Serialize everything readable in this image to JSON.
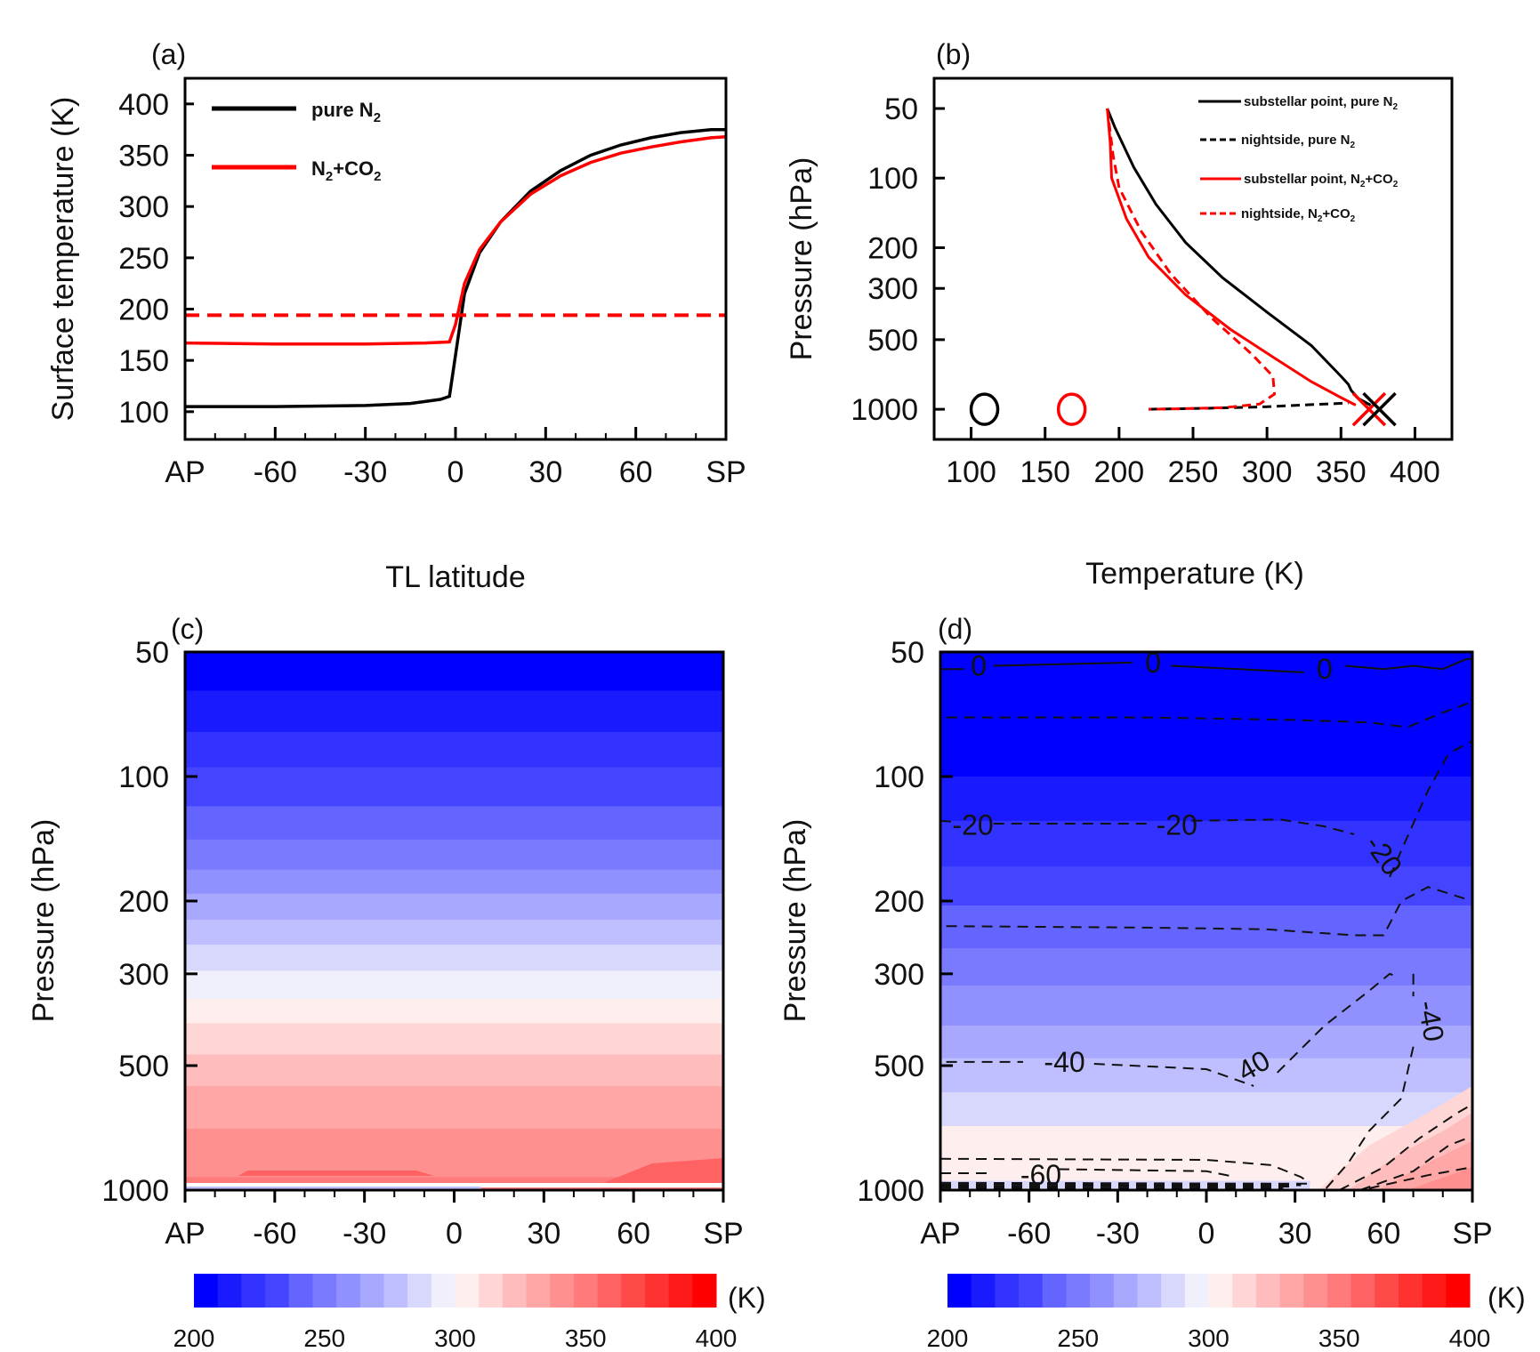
{
  "colors": {
    "black": "#000000",
    "red": "#ff0000"
  },
  "chart_data": [
    {
      "panel": "(a)",
      "type": "line",
      "xlabel": "TL latitude",
      "ylabel": "Surface temperature (K)",
      "xticks": [
        "AP",
        "-60",
        "-30",
        "0",
        "30",
        "60",
        "SP"
      ],
      "xtick_values": [
        -90,
        -60,
        -30,
        0,
        30,
        60,
        90
      ],
      "yticks": [
        "100",
        "150",
        "200",
        "250",
        "300",
        "350",
        "400"
      ],
      "ytick_values": [
        100,
        150,
        200,
        250,
        300,
        350,
        400
      ],
      "xlim": [
        -90,
        90
      ],
      "ylim": [
        73,
        425
      ],
      "legend": {
        "placement": "top-left",
        "entries": [
          {
            "label": "pure N",
            "sub": "2",
            "color": "#000000"
          },
          {
            "label": "N",
            "sub": "2",
            "label2": "+CO",
            "sub2": "2",
            "color": "#ff0000"
          }
        ]
      },
      "series": [
        {
          "name": "pure N2",
          "color": "#000000",
          "dash": false,
          "x": [
            -90,
            -60,
            -30,
            -15,
            -5,
            -2,
            0,
            3,
            8,
            15,
            25,
            35,
            45,
            55,
            65,
            75,
            85,
            90
          ],
          "y": [
            105,
            105,
            106,
            108,
            112,
            115,
            155,
            215,
            255,
            285,
            315,
            335,
            350,
            360,
            367,
            372,
            375,
            375
          ]
        },
        {
          "name": "N2+CO2",
          "color": "#ff0000",
          "dash": false,
          "x": [
            -90,
            -60,
            -30,
            -10,
            -2,
            0,
            3,
            8,
            15,
            25,
            35,
            45,
            55,
            65,
            75,
            85,
            90
          ],
          "y": [
            167,
            166,
            166,
            167,
            168,
            185,
            225,
            258,
            285,
            312,
            330,
            343,
            352,
            358,
            363,
            367,
            368
          ]
        },
        {
          "name": "N2+CO2 (dashed)",
          "color": "#ff0000",
          "dash": true,
          "x": [
            -90,
            90
          ],
          "y": [
            194,
            194
          ]
        }
      ]
    },
    {
      "panel": "(b)",
      "type": "line",
      "xlabel": "Temperature (K)",
      "ylabel": "Pressure (hPa)",
      "xticks": [
        "100",
        "150",
        "200",
        "250",
        "300",
        "350",
        "400"
      ],
      "xtick_values": [
        100,
        150,
        200,
        250,
        300,
        350,
        400
      ],
      "yticks": [
        "50",
        "100",
        "200",
        "300",
        "500",
        "1000"
      ],
      "ytick_values": [
        50,
        100,
        200,
        300,
        500,
        1000
      ],
      "xlim": [
        75,
        425
      ],
      "ylim_log": [
        1350,
        37
      ],
      "legend": {
        "placement": "top-right",
        "entries": [
          {
            "label": "substellar point, pure N",
            "sub": "2",
            "color": "#000000",
            "dash": false
          },
          {
            "label": "nightside,  pure N",
            "sub": "2",
            "color": "#000000",
            "dash": true
          },
          {
            "label": "substellar point, N",
            "sub": "2",
            "label2": "+CO",
            "sub2": "2",
            "color": "#ff0000",
            "dash": false
          },
          {
            "label": "nightside, N",
            "sub": "2",
            "label2": "+CO",
            "sub2": "2",
            "color": "#ff0000",
            "dash": true
          }
        ]
      },
      "series": [
        {
          "name": "substellar point, pure N2",
          "color": "#000000",
          "dash": false,
          "T": [
            192,
            197,
            210,
            225,
            245,
            270,
            300,
            330,
            350,
            355,
            357,
            362,
            370
          ],
          "p": [
            50,
            60,
            90,
            130,
            190,
            270,
            380,
            530,
            720,
            780,
            830,
            900,
            960
          ]
        },
        {
          "name": "nightside, pure N2",
          "color": "#000000",
          "dash": true,
          "T": [
            220,
            260,
            300,
            330,
            355
          ],
          "p": [
            1000,
            990,
            975,
            955,
            940
          ]
        },
        {
          "name": "substellar point, N2+CO2",
          "color": "#ff0000",
          "dash": false,
          "T": [
            192,
            194,
            195,
            205,
            220,
            245,
            275,
            305,
            330,
            350,
            360
          ],
          "p": [
            50,
            70,
            100,
            150,
            220,
            320,
            450,
            600,
            760,
            890,
            960
          ]
        },
        {
          "name": "nightside, N2+CO2",
          "color": "#ff0000",
          "dash": true,
          "T": [
            192,
            196,
            200,
            215,
            235,
            262,
            290,
            304,
            305,
            295,
            270,
            240,
            220
          ],
          "p": [
            50,
            80,
            110,
            170,
            260,
            400,
            580,
            720,
            860,
            950,
            985,
            995,
            1000
          ]
        }
      ],
      "markers": [
        {
          "shape": "circle",
          "T": 109,
          "p": 1000,
          "color": "#000000"
        },
        {
          "shape": "circle",
          "T": 168,
          "p": 1000,
          "color": "#ff0000"
        },
        {
          "shape": "x",
          "T": 369,
          "p": 1000,
          "color": "#ff0000"
        },
        {
          "shape": "x",
          "T": 376,
          "p": 1000,
          "color": "#000000"
        }
      ]
    },
    {
      "panel": "(c)",
      "type": "heatmap",
      "xlabel": "",
      "ylabel": "Pressure (hPa)",
      "xticks": [
        "AP",
        "-60",
        "-30",
        "0",
        "30",
        "60",
        "SP"
      ],
      "yticks": [
        "50",
        "100",
        "200",
        "300",
        "500",
        "1000"
      ],
      "ytick_values": [
        50,
        100,
        200,
        300,
        500,
        1000
      ],
      "color_levels_K": [
        200,
        209.1,
        218.2,
        227.3,
        236.4,
        245.5,
        254.5,
        263.6,
        272.7,
        281.8,
        290.9,
        300,
        309.1,
        318.2,
        327.3,
        336.4,
        345.5,
        354.5,
        363.6,
        372.7,
        381.8,
        390.9,
        400
      ],
      "band_level_index_top_to_bottom": [
        0,
        1,
        2,
        3,
        4,
        5,
        6,
        7,
        8,
        9,
        10,
        11,
        12,
        13,
        14,
        15,
        16
      ],
      "band_pressure_edges_hPa": [
        50,
        62,
        78,
        95,
        118,
        142,
        168,
        192,
        222,
        255,
        295,
        345,
        395,
        470,
        560,
        710,
        930,
        990
      ]
    },
    {
      "panel": "(d)",
      "type": "heatmap",
      "xlabel": "",
      "ylabel": "Pressure (hPa)",
      "xticks": [
        "AP",
        "-60",
        "-30",
        "0",
        "30",
        "60",
        "SP"
      ],
      "yticks": [
        "50",
        "100",
        "200",
        "300",
        "500",
        "1000"
      ],
      "ytick_values": [
        50,
        100,
        200,
        300,
        500,
        1000
      ],
      "band_level_index_top_to_bottom": [
        0,
        1,
        2,
        3,
        4,
        5,
        6,
        7,
        8,
        9,
        10,
        11
      ],
      "band_pressure_edges_hPa": [
        50,
        100,
        128,
        165,
        205,
        260,
        320,
        400,
        480,
        580,
        700,
        900,
        1000
      ],
      "contour_labels": [
        {
          "text": "0",
          "lat": -77,
          "p": 54
        },
        {
          "text": "0",
          "lat": -18,
          "p": 53
        },
        {
          "text": "0",
          "lat": 40,
          "p": 55
        },
        {
          "text": "-20",
          "lat": -79,
          "p": 131
        },
        {
          "text": "-20",
          "lat": -10,
          "p": 131
        },
        {
          "text": "-20",
          "lat": 60,
          "p": 155,
          "rotate": 55
        },
        {
          "text": "-40",
          "lat": -48,
          "p": 490
        },
        {
          "text": "40",
          "lat": 16,
          "p": 500,
          "rotate": -30
        },
        {
          "text": "-40",
          "lat": 76,
          "p": 390,
          "rotate": 80
        },
        {
          "text": "-60",
          "lat": -56,
          "p": 920
        }
      ],
      "contour_levels": [
        "0",
        "-10",
        "-20",
        "-30",
        "-40",
        "-50",
        "-60"
      ]
    }
  ],
  "colorbar_c": {
    "ticks": [
      "200",
      "250",
      "300",
      "350",
      "400"
    ],
    "tick_values": [
      200,
      250,
      300,
      350,
      400
    ],
    "unit": "(K)",
    "n_bins": 22
  },
  "colorbar_d": {
    "ticks": [
      "200",
      "250",
      "300",
      "350",
      "400"
    ],
    "tick_values": [
      200,
      250,
      300,
      350,
      400
    ],
    "unit": "(K)",
    "n_bins": 22
  },
  "colorbar_colors": [
    "#0000ff",
    "#1a1aff",
    "#3333ff",
    "#4545ff",
    "#6464ff",
    "#7a7aff",
    "#9090ff",
    "#a8a8ff",
    "#bfbfff",
    "#d8d8fd",
    "#f0f0fd",
    "#ffeeee",
    "#ffd6d6",
    "#ffbcbc",
    "#ffa6a6",
    "#ff9090",
    "#ff7a7a",
    "#ff6262",
    "#ff4a4a",
    "#ff3232",
    "#ff1a1a",
    "#ff0000"
  ]
}
